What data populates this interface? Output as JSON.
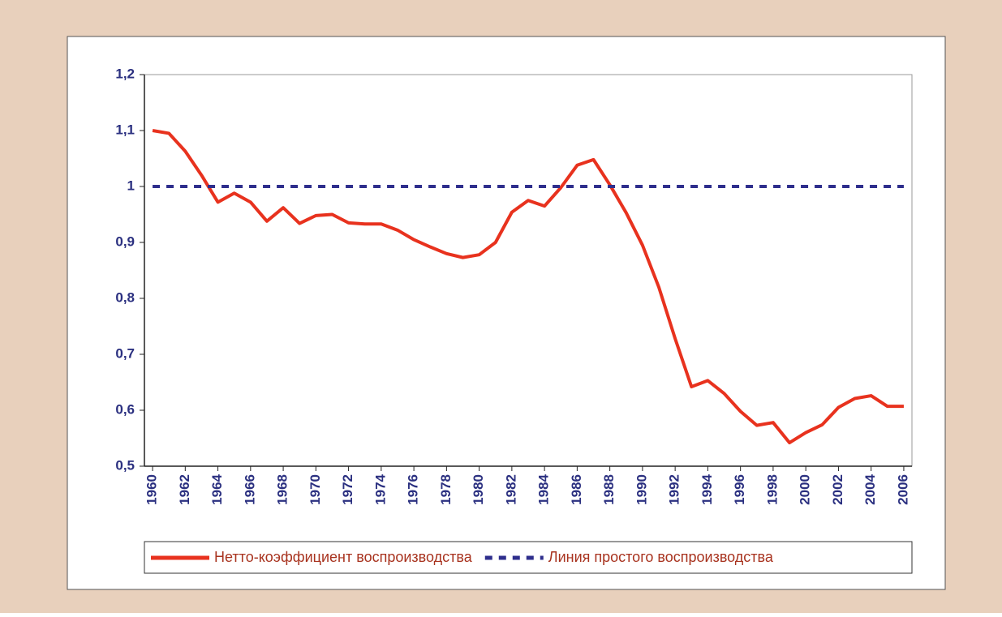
{
  "chart_data": {
    "type": "line",
    "x": [
      1960,
      1961,
      1962,
      1963,
      1964,
      1965,
      1966,
      1967,
      1968,
      1969,
      1970,
      1971,
      1972,
      1973,
      1974,
      1975,
      1976,
      1977,
      1978,
      1979,
      1980,
      1981,
      1982,
      1983,
      1984,
      1985,
      1986,
      1987,
      1988,
      1989,
      1990,
      1991,
      1992,
      1993,
      1994,
      1995,
      1996,
      1997,
      1998,
      1999,
      2000,
      2001,
      2002,
      2003,
      2004,
      2005,
      2006
    ],
    "series": [
      {
        "name": "Нетто-коэффициент воспроизводства",
        "color": "#e8321e",
        "style": "solid",
        "values": [
          1.1,
          1.095,
          1.063,
          1.02,
          0.972,
          0.988,
          0.972,
          0.938,
          0.962,
          0.934,
          0.948,
          0.95,
          0.935,
          0.933,
          0.933,
          0.922,
          0.905,
          0.892,
          0.88,
          0.873,
          0.878,
          0.9,
          0.954,
          0.975,
          0.965,
          0.998,
          1.038,
          1.048,
          1.003,
          0.953,
          0.895,
          0.82,
          0.728,
          0.642,
          0.653,
          0.63,
          0.598,
          0.573,
          0.578,
          0.542,
          0.56,
          0.574,
          0.605,
          0.621,
          0.626,
          0.607,
          0.607
        ]
      },
      {
        "name": "Линия простого воспроизводства",
        "color": "#2e2e8c",
        "style": "dashed",
        "values": [
          1,
          1,
          1,
          1,
          1,
          1,
          1,
          1,
          1,
          1,
          1,
          1,
          1,
          1,
          1,
          1,
          1,
          1,
          1,
          1,
          1,
          1,
          1,
          1,
          1,
          1,
          1,
          1,
          1,
          1,
          1,
          1,
          1,
          1,
          1,
          1,
          1,
          1,
          1,
          1,
          1,
          1,
          1,
          1,
          1,
          1,
          1
        ]
      }
    ],
    "xlim": [
      1959.5,
      2006.5
    ],
    "xticks": [
      1960,
      1962,
      1964,
      1966,
      1968,
      1970,
      1972,
      1974,
      1976,
      1978,
      1980,
      1982,
      1984,
      1986,
      1988,
      1990,
      1992,
      1994,
      1996,
      1998,
      2000,
      2002,
      2004,
      2006
    ],
    "ylim": [
      0.5,
      1.2
    ],
    "yticks": [
      {
        "value": 0.5,
        "label": "0,5"
      },
      {
        "value": 0.6,
        "label": "0,6"
      },
      {
        "value": 0.7,
        "label": "0,7"
      },
      {
        "value": 0.8,
        "label": "0,8"
      },
      {
        "value": 0.9,
        "label": "0,9"
      },
      1,
      {
        "value": 1.1,
        "label": "1,1"
      },
      {
        "value": 1.2,
        "label": "1,2"
      }
    ],
    "legend": "bottom"
  }
}
